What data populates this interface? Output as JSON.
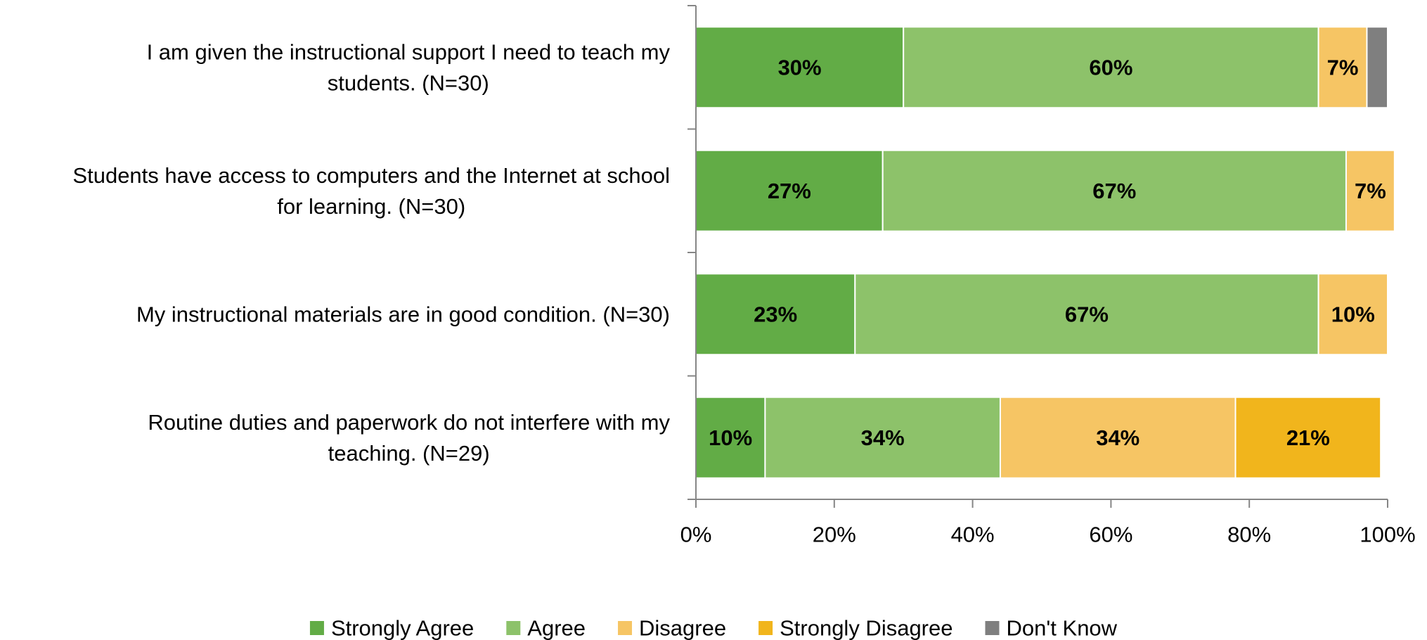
{
  "chart_data": {
    "type": "bar",
    "orientation": "horizontal",
    "stacked": true,
    "categories": [
      [
        "I am given the instructional support I need to teach my",
        "students. (N=30)"
      ],
      [
        "Students have access to computers and the Internet at school",
        "for learning. (N=30)"
      ],
      [
        "My instructional materials are in good condition. (N=30)"
      ],
      [
        "Routine duties and paperwork do not interfere with my",
        "teaching. (N=29)"
      ]
    ],
    "series": [
      {
        "name": "Strongly Agree",
        "color": "#62AC46",
        "values": [
          30,
          27,
          23,
          10
        ],
        "labels": [
          "30%",
          "27%",
          "23%",
          "10%"
        ]
      },
      {
        "name": "Agree",
        "color": "#8DC26A",
        "values": [
          60,
          67,
          67,
          34
        ],
        "labels": [
          "60%",
          "67%",
          "67%",
          "34%"
        ]
      },
      {
        "name": "Disagree",
        "color": "#F6C564",
        "values": [
          7,
          7,
          10,
          34
        ],
        "labels": [
          "7%",
          "7%",
          "10%",
          "34%"
        ]
      },
      {
        "name": "Strongly Disagree",
        "color": "#F1B51C",
        "values": [
          0,
          0,
          0,
          21
        ],
        "labels": [
          "",
          "",
          "",
          "21%"
        ]
      },
      {
        "name": "Don't Know",
        "color": "#7F7F7F",
        "values": [
          3,
          0,
          0,
          0
        ],
        "labels": [
          "",
          "",
          "",
          ""
        ]
      }
    ],
    "xlim": [
      0,
      100
    ],
    "xticks": [
      0,
      20,
      40,
      60,
      80,
      100
    ],
    "xtick_labels": [
      "0%",
      "20%",
      "40%",
      "60%",
      "80%",
      "100%"
    ],
    "legend_position": "bottom",
    "grid": false
  }
}
